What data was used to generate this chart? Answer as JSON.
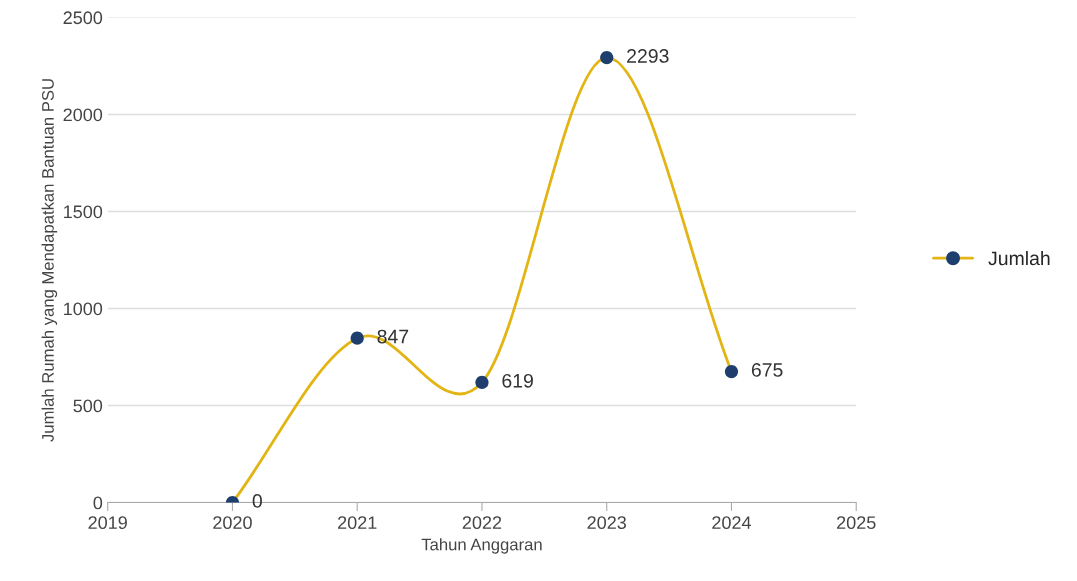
{
  "chart_data": {
    "type": "line",
    "xlabel": "Tahun Anggaran",
    "ylabel": "Jumlah Rumah yang Mendapatkan Bantuan PSU",
    "x": [
      2020,
      2021,
      2022,
      2023,
      2024
    ],
    "series": [
      {
        "name": "Jumlah",
        "color": "#e3b514",
        "colors": [
          "#1e3f6e",
          "#1e3f6e",
          "#1e3f6e",
          "#1e3f6e",
          "#1e3f6e"
        ],
        "values": [
          0,
          847,
          619,
          2293,
          675
        ]
      }
    ],
    "xlim": [
      2019,
      2025
    ],
    "xticks": [
      2019,
      2020,
      2021,
      2022,
      2023,
      2024,
      2025
    ],
    "ylim": [
      0,
      2500
    ],
    "yticks": [
      0,
      500,
      1000,
      1500,
      2000,
      2500
    ],
    "grid": "y",
    "legend": "right",
    "marker": "circle",
    "line_style": "solid",
    "data_labels": true
  }
}
